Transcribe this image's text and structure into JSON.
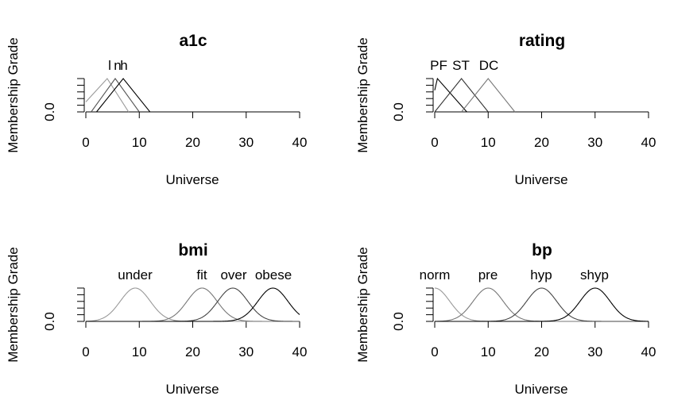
{
  "chart_data": [
    {
      "type": "line",
      "title": "a1c",
      "xlabel": "Universe",
      "ylabel": "Membership Grade",
      "xlim": [
        0,
        40
      ],
      "xticks": [
        0,
        10,
        20,
        30,
        40
      ],
      "ytick_label": "0.0",
      "set_labels": [
        "l",
        "n",
        "h"
      ],
      "series": [
        {
          "name": "l",
          "shape": "triangle",
          "points": [
            [
              0,
              0.3
            ],
            [
              4,
              1
            ],
            [
              8,
              0
            ]
          ],
          "color": "#999999"
        },
        {
          "name": "n",
          "shape": "triangle",
          "points": [
            [
              1,
              0
            ],
            [
              5.5,
              1
            ],
            [
              10,
              0
            ]
          ],
          "color": "#555555"
        },
        {
          "name": "h",
          "shape": "triangle",
          "points": [
            [
              2,
              0
            ],
            [
              7,
              1
            ],
            [
              12,
              0
            ]
          ],
          "color": "#000000"
        }
      ]
    },
    {
      "type": "line",
      "title": "rating",
      "xlabel": "Universe",
      "ylabel": "Membership Grade",
      "xlim": [
        0,
        40
      ],
      "xticks": [
        0,
        10,
        20,
        30,
        40
      ],
      "ytick_label": "0.0",
      "set_labels": [
        "PF",
        "ST",
        "DC"
      ],
      "series": [
        {
          "name": "PF",
          "shape": "triangle",
          "points": [
            [
              0,
              0.65
            ],
            [
              0.5,
              1
            ],
            [
              6,
              0
            ]
          ],
          "color": "#000000"
        },
        {
          "name": "ST",
          "shape": "triangle",
          "points": [
            [
              0,
              0
            ],
            [
              5,
              1
            ],
            [
              10,
              0
            ]
          ],
          "color": "#333333"
        },
        {
          "name": "DC",
          "shape": "triangle",
          "points": [
            [
              5,
              0
            ],
            [
              10,
              1
            ],
            [
              15,
              0
            ]
          ],
          "color": "#777777"
        }
      ]
    },
    {
      "type": "line",
      "title": "bmi",
      "xlabel": "Universe",
      "ylabel": "Membership Grade",
      "xlim": [
        0,
        40
      ],
      "xticks": [
        0,
        10,
        20,
        30,
        40
      ],
      "ytick_label": "0.0",
      "set_labels": [
        "under",
        "fit",
        "over",
        "obese"
      ],
      "series": [
        {
          "name": "under",
          "shape": "gaussian",
          "mean": 9.25,
          "sd": 2.8,
          "color": "#999999"
        },
        {
          "name": "fit",
          "shape": "gaussian",
          "mean": 21.75,
          "sd": 2.8,
          "color": "#777777"
        },
        {
          "name": "over",
          "shape": "gaussian",
          "mean": 27.5,
          "sd": 2.8,
          "color": "#444444"
        },
        {
          "name": "obese",
          "shape": "gaussian",
          "mean": 35,
          "sd": 2.8,
          "color": "#000000"
        }
      ]
    },
    {
      "type": "line",
      "title": "bp",
      "xlabel": "Universe",
      "ylabel": "Membership Grade",
      "xlim": [
        0,
        40
      ],
      "xticks": [
        0,
        10,
        20,
        30,
        40
      ],
      "ytick_label": "0.0",
      "set_labels": [
        "norm",
        "pre",
        "hyp",
        "shyp"
      ],
      "series": [
        {
          "name": "norm",
          "shape": "gaussian",
          "mean": 0,
          "sd": 2.8,
          "color": "#999999"
        },
        {
          "name": "pre",
          "shape": "gaussian",
          "mean": 10,
          "sd": 2.8,
          "color": "#777777"
        },
        {
          "name": "hyp",
          "shape": "gaussian",
          "mean": 20,
          "sd": 2.8,
          "color": "#444444"
        },
        {
          "name": "shyp",
          "shape": "gaussian",
          "mean": 30,
          "sd": 2.8,
          "color": "#000000"
        }
      ]
    }
  ]
}
